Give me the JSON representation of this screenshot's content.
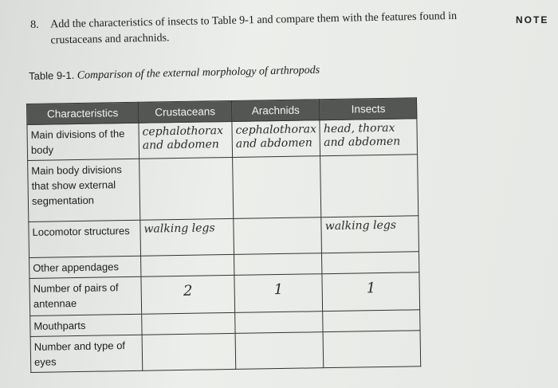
{
  "question": {
    "number": "8.",
    "text": "Add the characteristics of insects to Table 9-1 and compare them with the features found in crustaceans and arachnids."
  },
  "note_label": "NOTE",
  "caption": {
    "label": "Table 9-1.",
    "title": "Comparison of the external morphology of arthropods"
  },
  "table": {
    "headers": [
      "Characteristics",
      "Crustaceans",
      "Arachnids",
      "Insects"
    ],
    "rows": [
      {
        "label": "Main divisions of the body",
        "values": [
          "cephalothorax and abdomen",
          "cephalothorax and abdomen",
          "head, thorax and abdomen"
        ]
      },
      {
        "label": "Main body divisions that show external segmentation",
        "values": [
          "",
          "",
          ""
        ]
      },
      {
        "label": "Locomotor structures",
        "values": [
          "walking legs",
          "",
          "walking legs"
        ]
      },
      {
        "label": "Other appendages",
        "values": [
          "",
          "",
          ""
        ]
      },
      {
        "label": "Number of pairs of antennae",
        "values": [
          "2",
          "1",
          "1"
        ]
      },
      {
        "label": "Mouthparts",
        "values": [
          "",
          "",
          ""
        ]
      },
      {
        "label": "Number and type of eyes",
        "values": [
          "",
          "",
          ""
        ]
      }
    ]
  }
}
